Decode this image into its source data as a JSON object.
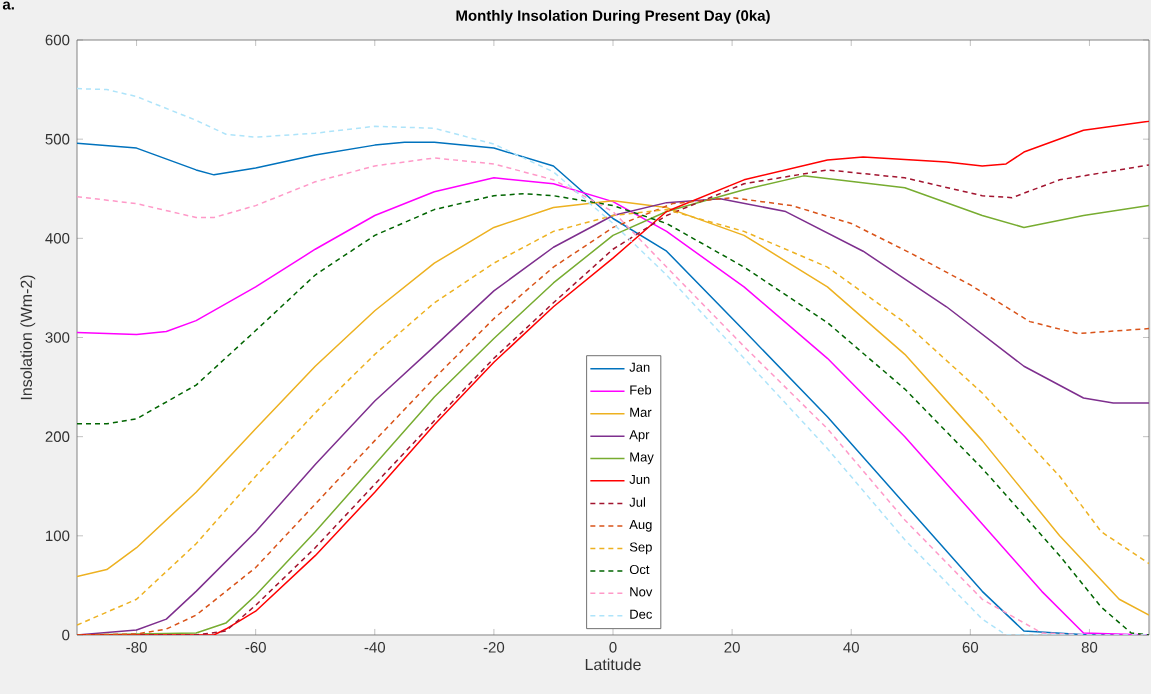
{
  "chart_data": {
    "type": "line",
    "title": "Monthly Insolation During Present Day (0ka)",
    "xlabel": "Latitude",
    "ylabel": "Insolation (Wm-2)",
    "annotations": [
      "a."
    ],
    "xlim": [
      -90,
      90
    ],
    "ylim": [
      0,
      600
    ],
    "xticks": [
      -80,
      -60,
      -40,
      -20,
      0,
      20,
      40,
      60,
      80
    ],
    "yticks": [
      0,
      100,
      200,
      300,
      400,
      500,
      600
    ],
    "grid": false,
    "legend": "bottom",
    "marker": "none",
    "series": [
      {
        "name": "Jan",
        "color": "#0072bd",
        "line_style": "solid",
        "x": [
          -90,
          -80,
          -70,
          -67,
          -60,
          -50,
          -40,
          -35,
          -30,
          -20,
          -10,
          0,
          9,
          22,
          36,
          49,
          62,
          69,
          80,
          90
        ],
        "values": [
          496,
          491,
          469,
          464,
          471,
          484,
          494,
          497,
          497,
          491,
          473,
          420,
          387,
          307,
          220,
          132,
          44,
          4,
          0,
          0
        ]
      },
      {
        "name": "Feb",
        "color": "#ff00ff",
        "line_style": "solid",
        "x": [
          -90,
          -80,
          -75,
          -70,
          -60,
          -50,
          -40,
          -30,
          -20,
          -10,
          0,
          9,
          22,
          36,
          49,
          62,
          72,
          79,
          90
        ],
        "values": [
          305,
          303,
          306,
          317,
          351,
          389,
          423,
          447,
          461,
          455,
          437,
          407,
          351,
          279,
          200,
          112,
          44,
          2,
          0
        ]
      },
      {
        "name": "Mar",
        "color": "#edb120",
        "line_style": "solid",
        "x": [
          -90,
          -85,
          -80,
          -70,
          -60,
          -50,
          -40,
          -30,
          -20,
          -10,
          0,
          9,
          22,
          36,
          49,
          62,
          75,
          85,
          90
        ],
        "values": [
          59,
          66,
          88,
          144,
          208,
          271,
          327,
          375,
          411,
          431,
          438,
          431,
          403,
          351,
          283,
          196,
          100,
          36,
          20
        ]
      },
      {
        "name": "Apr",
        "color": "#7e2f8e",
        "line_style": "solid",
        "x": [
          -90,
          -80,
          -75,
          -70,
          -60,
          -50,
          -40,
          -30,
          -20,
          -10,
          0,
          9,
          18,
          29,
          42,
          56,
          69,
          79,
          84,
          90
        ],
        "values": [
          0,
          5,
          16,
          44,
          104,
          172,
          236,
          291,
          347,
          391,
          423,
          436,
          440,
          427,
          387,
          331,
          271,
          239,
          234,
          234
        ]
      },
      {
        "name": "May",
        "color": "#77ac30",
        "line_style": "solid",
        "x": [
          -90,
          -70,
          -65,
          -60,
          -50,
          -40,
          -30,
          -20,
          -10,
          0,
          9,
          22,
          32,
          49,
          62,
          69,
          79,
          90
        ],
        "values": [
          0,
          2,
          12,
          40,
          104,
          172,
          240,
          299,
          355,
          403,
          427,
          449,
          463,
          451,
          423,
          411,
          423,
          433
        ]
      },
      {
        "name": "Jun",
        "color": "#ff0000",
        "line_style": "solid",
        "x": [
          -90,
          -67,
          -65,
          -60,
          -50,
          -40,
          -30,
          -20,
          -10,
          0,
          9,
          22,
          36,
          42,
          56,
          62,
          66,
          69,
          79,
          90
        ],
        "values": [
          0,
          0,
          6,
          24,
          80,
          144,
          212,
          275,
          331,
          380,
          427,
          459,
          479,
          482,
          477,
          473,
          475,
          487,
          509,
          518
        ]
      },
      {
        "name": "Jul",
        "color": "#a2142f",
        "line_style": "dashed",
        "x": [
          -90,
          -70,
          -65,
          -60,
          -50,
          -40,
          -30,
          -20,
          -10,
          0,
          9,
          22,
          36,
          49,
          62,
          67,
          75,
          90
        ],
        "values": [
          0,
          0,
          4,
          30,
          88,
          152,
          216,
          279,
          335,
          389,
          423,
          455,
          469,
          461,
          443,
          441,
          459,
          474
        ]
      },
      {
        "name": "Aug",
        "color": "#d95319",
        "line_style": "dashed",
        "x": [
          -90,
          -80,
          -75,
          -70,
          -60,
          -50,
          -40,
          -30,
          -20,
          -10,
          0,
          10,
          20,
          30,
          40,
          50,
          60,
          70,
          78,
          90
        ],
        "values": [
          0,
          1,
          6,
          20,
          68,
          132,
          196,
          259,
          319,
          371,
          411,
          435,
          441,
          433,
          415,
          385,
          353,
          316,
          304,
          309
        ]
      },
      {
        "name": "Sep",
        "color": "#edb120",
        "line_style": "dashed",
        "x": [
          -90,
          -80,
          -70,
          -60,
          -50,
          -40,
          -30,
          -20,
          -10,
          0,
          9,
          22,
          36,
          49,
          62,
          75,
          82,
          90
        ],
        "values": [
          10,
          36,
          92,
          160,
          224,
          283,
          335,
          375,
          407,
          423,
          429,
          407,
          371,
          315,
          244,
          160,
          104,
          72
        ]
      },
      {
        "name": "Oct",
        "color": "#006400",
        "line_style": "dashed",
        "x": [
          -90,
          -85,
          -80,
          -70,
          -60,
          -50,
          -40,
          -30,
          -20,
          -15,
          -10,
          0,
          9,
          22,
          36,
          49,
          62,
          75,
          82,
          87,
          90
        ],
        "values": [
          213,
          213,
          218,
          252,
          307,
          363,
          403,
          429,
          443,
          445,
          443,
          433,
          415,
          371,
          315,
          248,
          168,
          80,
          28,
          2,
          0
        ]
      },
      {
        "name": "Nov",
        "color": "#ff99c8",
        "line_style": "dashed",
        "x": [
          -90,
          -80,
          -70,
          -67,
          -60,
          -50,
          -40,
          -30,
          -20,
          -10,
          0,
          9,
          22,
          36,
          49,
          62,
          72,
          80,
          90
        ],
        "values": [
          442,
          435,
          421,
          421,
          433,
          457,
          473,
          481,
          475,
          459,
          427,
          371,
          291,
          208,
          116,
          36,
          2,
          0,
          0
        ]
      },
      {
        "name": "Dec",
        "color": "#aee4fa",
        "line_style": "dashed",
        "x": [
          -90,
          -85,
          -80,
          -70,
          -65,
          -60,
          -50,
          -40,
          -30,
          -20,
          -10,
          0,
          9,
          22,
          36,
          49,
          62,
          66,
          80,
          90
        ],
        "values": [
          551,
          550,
          543,
          519,
          505,
          502,
          506,
          513,
          511,
          495,
          467,
          415,
          363,
          279,
          188,
          96,
          16,
          0,
          0,
          0
        ]
      }
    ]
  }
}
